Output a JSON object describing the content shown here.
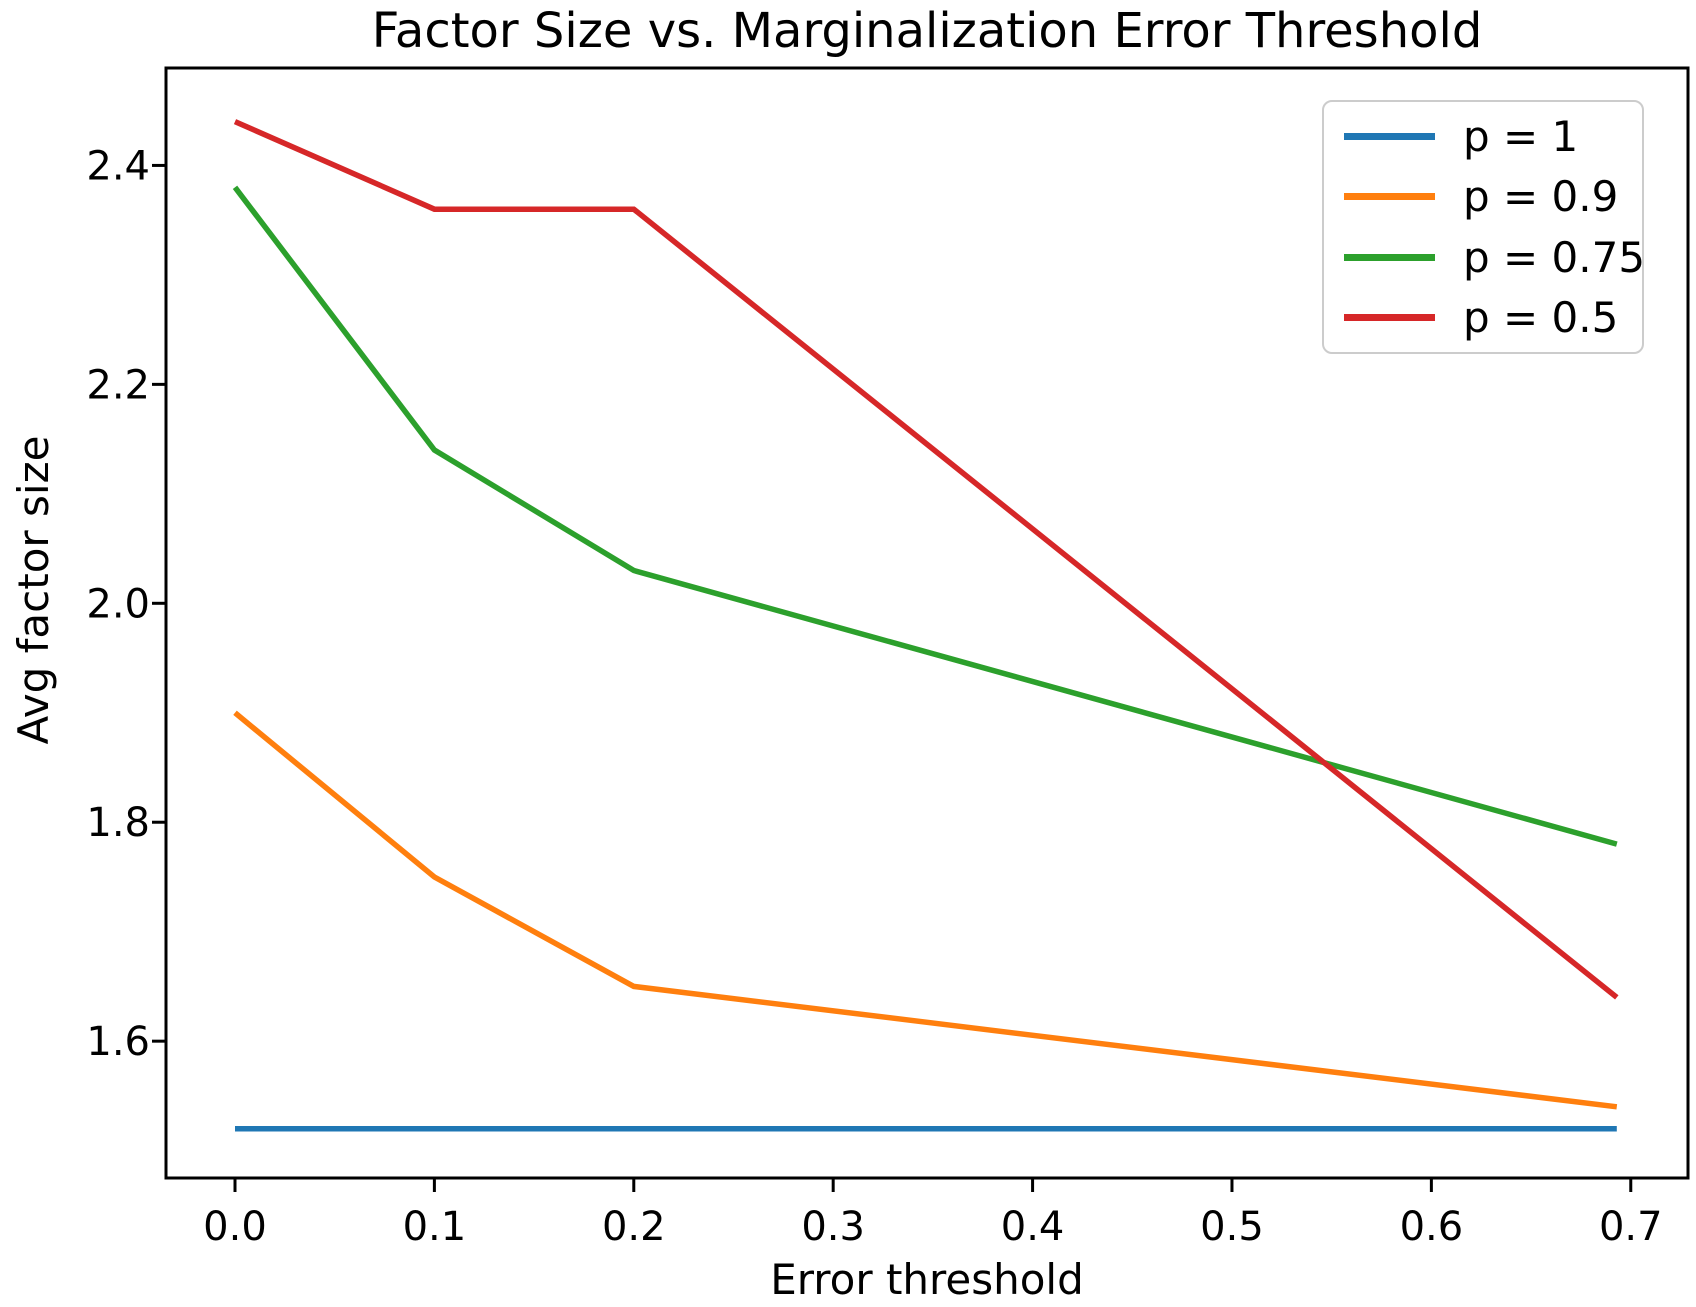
{
  "chart_data": {
    "type": "line",
    "title": "Factor Size vs. Marginalization Error Threshold",
    "xlabel": "Error threshold",
    "ylabel": "Avg factor size",
    "x": [
      0.0,
      0.1,
      0.2,
      0.693
    ],
    "series": [
      {
        "name": "p = 1",
        "color": "#1f77b4",
        "values": [
          1.52,
          1.52,
          1.52,
          1.52
        ]
      },
      {
        "name": "p = 0.9",
        "color": "#ff7f0e",
        "values": [
          1.9,
          1.75,
          1.65,
          1.54
        ]
      },
      {
        "name": "p = 0.75",
        "color": "#2ca02c",
        "values": [
          2.38,
          2.14,
          2.03,
          1.78
        ]
      },
      {
        "name": "p = 0.5",
        "color": "#d62728",
        "values": [
          2.44,
          2.36,
          2.36,
          1.64
        ]
      }
    ],
    "xlim": [
      -0.0346,
      0.7287
    ],
    "ylim": [
      1.475,
      2.489
    ],
    "xticks": [
      0.0,
      0.1,
      0.2,
      0.3,
      0.4,
      0.5,
      0.6,
      0.7
    ],
    "xtick_labels": [
      "0.0",
      "0.1",
      "0.2",
      "0.3",
      "0.4",
      "0.5",
      "0.6",
      "0.7"
    ],
    "yticks": [
      1.6,
      1.8,
      2.0,
      2.2,
      2.4
    ],
    "ytick_labels": [
      "1.6",
      "1.8",
      "2.0",
      "2.2",
      "2.4"
    ],
    "grid": false,
    "legend_position": "upper right",
    "axis_color": "#000000",
    "legend_border_color": "#cccccc"
  }
}
